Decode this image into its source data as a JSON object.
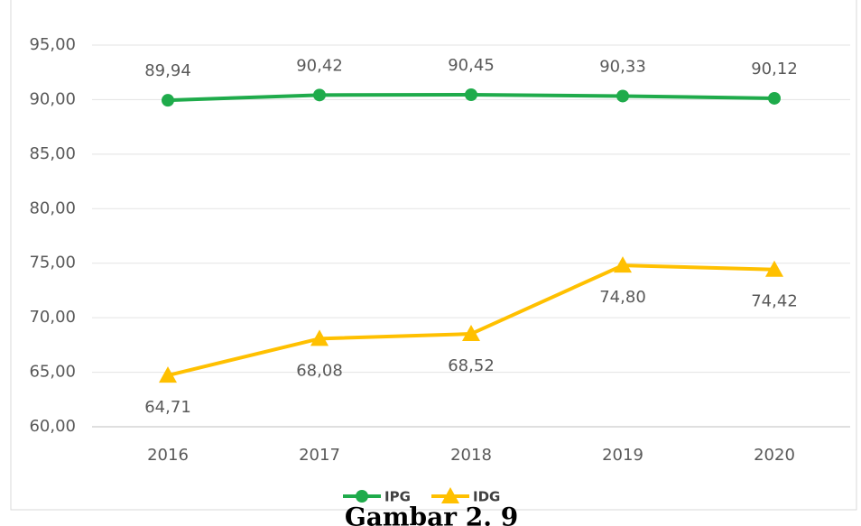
{
  "chart_data": {
    "type": "line",
    "categories": [
      "2016",
      "2017",
      "2018",
      "2019",
      "2020"
    ],
    "series": [
      {
        "name": "IPG",
        "color": "#1fab4b",
        "marker": "circle",
        "values": [
          89.94,
          90.42,
          90.45,
          90.33,
          90.12
        ],
        "value_labels": [
          "89,94",
          "90,42",
          "90,45",
          "90,33",
          "90,12"
        ]
      },
      {
        "name": "IDG",
        "color": "#ffc000",
        "marker": "triangle",
        "values": [
          64.71,
          68.08,
          68.52,
          74.8,
          74.42
        ],
        "value_labels": [
          "64,71",
          "68,08",
          "68,52",
          "74,80",
          "74,42"
        ]
      }
    ],
    "ylim": [
      60,
      95
    ],
    "yticks": [
      {
        "value": 60,
        "label": "60,00"
      },
      {
        "value": 65,
        "label": "65,00"
      },
      {
        "value": 70,
        "label": "70,00"
      },
      {
        "value": 75,
        "label": "75,00"
      },
      {
        "value": 80,
        "label": "80,00"
      },
      {
        "value": 85,
        "label": "85,00"
      },
      {
        "value": 90,
        "label": "90,00"
      },
      {
        "value": 95,
        "label": "95,00"
      }
    ],
    "grid": true,
    "legend": "bottom",
    "caption": "Gambar 2. 9"
  }
}
